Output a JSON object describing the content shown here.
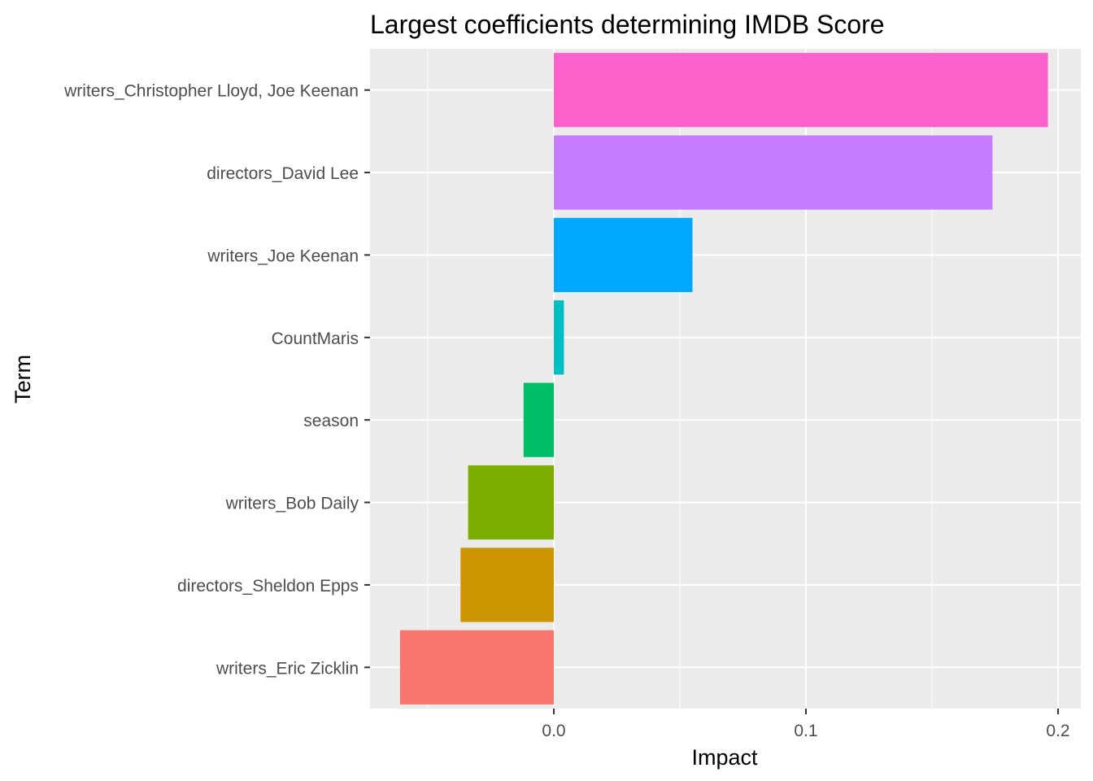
{
  "chart_data": {
    "type": "bar",
    "orientation": "horizontal",
    "title": "Largest coefficients determining IMDB Score",
    "xlabel": "Impact",
    "ylabel": "Term",
    "xlim": [
      -0.073,
      0.2
    ],
    "x_ticks": [
      "0.0",
      "0.1",
      "0.2"
    ],
    "x_tick_values": [
      0,
      0.1,
      0.2
    ],
    "grid": true,
    "legend": "none",
    "panel_color": "#ebebeb",
    "categories": [
      "writers_Christopher Lloyd, Joe Keenan",
      "directors_David Lee",
      "writers_Joe Keenan",
      "CountMaris",
      "season",
      "writers_Bob Daily",
      "directors_Sheldon Epps",
      "writers_Eric Zicklin"
    ],
    "values": [
      0.196,
      0.174,
      0.055,
      0.004,
      -0.012,
      -0.034,
      -0.037,
      -0.061
    ],
    "colors": [
      "#FF61CC",
      "#C77CFF",
      "#00A9FF",
      "#00BFC4",
      "#00BE67",
      "#7CAE00",
      "#CD9600",
      "#F8766D"
    ]
  }
}
